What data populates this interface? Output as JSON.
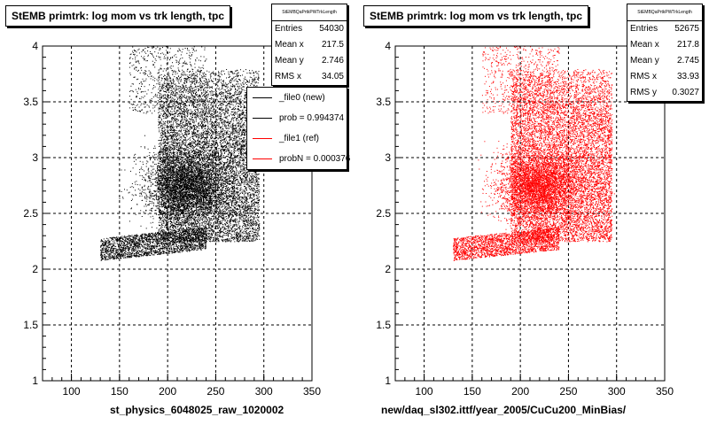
{
  "chart_data": [
    {
      "type": "scatter",
      "title": "StEMB primtrk: log mom vs trk length, tpc",
      "xlabel": "st_physics_6048025_raw_1020002",
      "xlim": [
        70,
        350
      ],
      "ylim": [
        1,
        4
      ],
      "xticks": [
        100,
        150,
        200,
        250,
        300,
        350
      ],
      "yticks": [
        1,
        1.5,
        2,
        2.5,
        3,
        3.5,
        4
      ],
      "grid": true,
      "marker_color": "#000000",
      "stats": {
        "name": "StEMBQaPrtkPWTrkLength",
        "rows": [
          {
            "label": "Entries",
            "value": "54030"
          },
          {
            "label": "Mean x",
            "value": "217.5"
          },
          {
            "label": "Mean y",
            "value": "2.746"
          },
          {
            "label": "RMS x",
            "value": "34.05"
          }
        ]
      },
      "legend": {
        "placement": "right",
        "entries": [
          {
            "label": "_file0 (new)",
            "color": "#000000"
          },
          {
            "label": "prob = 0.994374",
            "color": "#000000"
          },
          {
            "label": "_file1 (ref)",
            "color": "#ff0000"
          },
          {
            "label": "probN = 0.000376",
            "color": "#ff0000"
          }
        ]
      }
    },
    {
      "type": "scatter",
      "title": "StEMB primtrk: log mom vs trk length, tpc",
      "xlabel": "new/daq_sl302.ittf/year_2005/CuCu200_MinBias/",
      "xlim": [
        70,
        350
      ],
      "ylim": [
        1,
        4
      ],
      "xticks": [
        100,
        150,
        200,
        250,
        300,
        350
      ],
      "yticks": [
        1,
        1.5,
        2,
        2.5,
        3,
        3.5,
        4
      ],
      "grid": true,
      "marker_color": "#ff0000",
      "stats": {
        "name": "StEMBQaPrtkPWTrkLength",
        "rows": [
          {
            "label": "Entries",
            "value": "52675"
          },
          {
            "label": "Mean x",
            "value": "217.8"
          },
          {
            "label": "Mean y",
            "value": "2.745"
          },
          {
            "label": "RMS x",
            "value": "33.93"
          },
          {
            "label": "RMS y",
            "value": "0.3027"
          }
        ]
      }
    }
  ]
}
